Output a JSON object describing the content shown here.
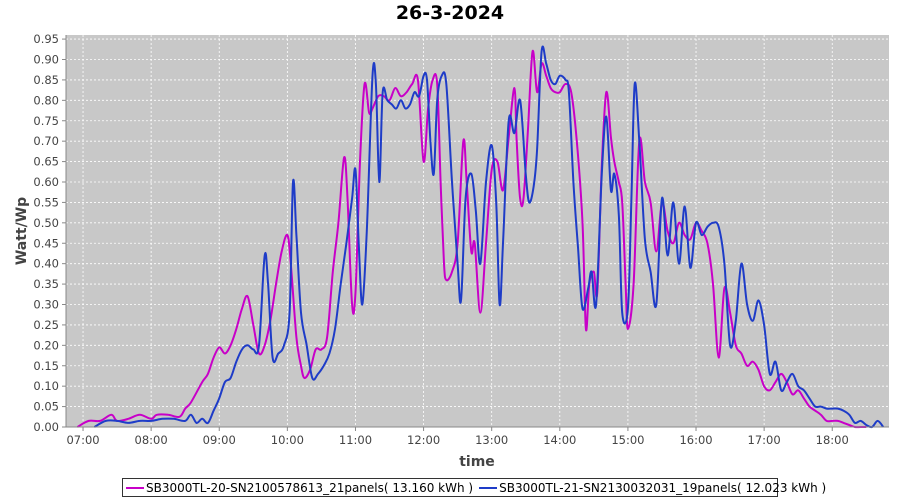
{
  "chart_data": {
    "type": "line",
    "title": "26-3-2024",
    "xlabel": "time",
    "ylabel": "Watt/Wp",
    "xlim": [
      "06:45",
      "18:50"
    ],
    "ylim": [
      0,
      0.96
    ],
    "x_ticks": [
      "07:00",
      "08:00",
      "09:00",
      "10:00",
      "11:00",
      "12:00",
      "13:00",
      "14:00",
      "15:00",
      "16:00",
      "17:00",
      "18:00"
    ],
    "y_ticks": [
      "0.00",
      "0.05",
      "0.10",
      "0.15",
      "0.20",
      "0.25",
      "0.30",
      "0.35",
      "0.40",
      "0.45",
      "0.50",
      "0.55",
      "0.60",
      "0.65",
      "0.70",
      "0.75",
      "0.80",
      "0.85",
      "0.90",
      "0.95"
    ],
    "grid": true,
    "legend_position": "bottom",
    "background_color": "#c8c8c8",
    "series": [
      {
        "name": "SB3000TL-20-SN2100578613_21panels( 13.160 kWh )",
        "color": "#c800c8",
        "points": [
          [
            "06:55",
            0.0
          ],
          [
            "07:05",
            0.015
          ],
          [
            "07:15",
            0.015
          ],
          [
            "07:25",
            0.03
          ],
          [
            "07:30",
            0.015
          ],
          [
            "07:40",
            0.02
          ],
          [
            "07:50",
            0.03
          ],
          [
            "08:00",
            0.02
          ],
          [
            "08:05",
            0.03
          ],
          [
            "08:15",
            0.03
          ],
          [
            "08:25",
            0.025
          ],
          [
            "08:30",
            0.045
          ],
          [
            "08:35",
            0.06
          ],
          [
            "08:45",
            0.11
          ],
          [
            "08:50",
            0.13
          ],
          [
            "08:55",
            0.17
          ],
          [
            "09:00",
            0.195
          ],
          [
            "09:05",
            0.18
          ],
          [
            "09:10",
            0.2
          ],
          [
            "09:15",
            0.24
          ],
          [
            "09:20",
            0.29
          ],
          [
            "09:25",
            0.32
          ],
          [
            "09:30",
            0.25
          ],
          [
            "09:35",
            0.18
          ],
          [
            "09:40",
            0.2
          ],
          [
            "09:45",
            0.26
          ],
          [
            "09:50",
            0.35
          ],
          [
            "09:55",
            0.43
          ],
          [
            "10:00",
            0.47
          ],
          [
            "10:03",
            0.4
          ],
          [
            "10:08",
            0.22
          ],
          [
            "10:12",
            0.15
          ],
          [
            "10:15",
            0.12
          ],
          [
            "10:20",
            0.14
          ],
          [
            "10:25",
            0.19
          ],
          [
            "10:30",
            0.19
          ],
          [
            "10:35",
            0.22
          ],
          [
            "10:40",
            0.38
          ],
          [
            "10:45",
            0.5
          ],
          [
            "10:50",
            0.66
          ],
          [
            "10:53",
            0.56
          ],
          [
            "10:57",
            0.3
          ],
          [
            "11:00",
            0.33
          ],
          [
            "11:04",
            0.65
          ],
          [
            "11:08",
            0.84
          ],
          [
            "11:12",
            0.77
          ],
          [
            "11:15",
            0.78
          ],
          [
            "11:20",
            0.81
          ],
          [
            "11:25",
            0.81
          ],
          [
            "11:30",
            0.8
          ],
          [
            "11:35",
            0.83
          ],
          [
            "11:40",
            0.81
          ],
          [
            "11:45",
            0.82
          ],
          [
            "11:50",
            0.84
          ],
          [
            "11:55",
            0.85
          ],
          [
            "12:00",
            0.65
          ],
          [
            "12:04",
            0.78
          ],
          [
            "12:08",
            0.85
          ],
          [
            "12:12",
            0.84
          ],
          [
            "12:15",
            0.6
          ],
          [
            "12:18",
            0.4
          ],
          [
            "12:20",
            0.36
          ],
          [
            "12:25",
            0.38
          ],
          [
            "12:30",
            0.45
          ],
          [
            "12:35",
            0.7
          ],
          [
            "12:38",
            0.6
          ],
          [
            "12:42",
            0.43
          ],
          [
            "12:45",
            0.45
          ],
          [
            "12:50",
            0.28
          ],
          [
            "12:55",
            0.45
          ],
          [
            "13:00",
            0.63
          ],
          [
            "13:05",
            0.65
          ],
          [
            "13:10",
            0.58
          ],
          [
            "13:15",
            0.71
          ],
          [
            "13:20",
            0.83
          ],
          [
            "13:22",
            0.7
          ],
          [
            "13:25",
            0.56
          ],
          [
            "13:28",
            0.56
          ],
          [
            "13:32",
            0.73
          ],
          [
            "13:36",
            0.92
          ],
          [
            "13:40",
            0.82
          ],
          [
            "13:44",
            0.89
          ],
          [
            "13:48",
            0.86
          ],
          [
            "13:52",
            0.83
          ],
          [
            "13:56",
            0.82
          ],
          [
            "14:00",
            0.82
          ],
          [
            "14:05",
            0.84
          ],
          [
            "14:10",
            0.82
          ],
          [
            "14:15",
            0.7
          ],
          [
            "14:20",
            0.5
          ],
          [
            "14:23",
            0.24
          ],
          [
            "14:26",
            0.35
          ],
          [
            "14:30",
            0.38
          ],
          [
            "14:33",
            0.33
          ],
          [
            "14:37",
            0.64
          ],
          [
            "14:41",
            0.82
          ],
          [
            "14:45",
            0.71
          ],
          [
            "14:48",
            0.65
          ],
          [
            "14:52",
            0.6
          ],
          [
            "14:55",
            0.55
          ],
          [
            "14:58",
            0.35
          ],
          [
            "15:00",
            0.24
          ],
          [
            "15:05",
            0.35
          ],
          [
            "15:10",
            0.7
          ],
          [
            "15:15",
            0.6
          ],
          [
            "15:20",
            0.55
          ],
          [
            "15:25",
            0.43
          ],
          [
            "15:30",
            0.55
          ],
          [
            "15:35",
            0.48
          ],
          [
            "15:40",
            0.45
          ],
          [
            "15:45",
            0.5
          ],
          [
            "15:50",
            0.47
          ],
          [
            "15:55",
            0.46
          ],
          [
            "16:00",
            0.5
          ],
          [
            "16:05",
            0.48
          ],
          [
            "16:10",
            0.45
          ],
          [
            "16:15",
            0.35
          ],
          [
            "16:20",
            0.17
          ],
          [
            "16:25",
            0.34
          ],
          [
            "16:30",
            0.28
          ],
          [
            "16:35",
            0.2
          ],
          [
            "16:40",
            0.18
          ],
          [
            "16:45",
            0.15
          ],
          [
            "16:50",
            0.16
          ],
          [
            "16:55",
            0.14
          ],
          [
            "17:00",
            0.1
          ],
          [
            "17:05",
            0.09
          ],
          [
            "17:10",
            0.11
          ],
          [
            "17:15",
            0.13
          ],
          [
            "17:20",
            0.11
          ],
          [
            "17:25",
            0.08
          ],
          [
            "17:30",
            0.09
          ],
          [
            "17:35",
            0.07
          ],
          [
            "17:40",
            0.05
          ],
          [
            "17:45",
            0.04
          ],
          [
            "17:50",
            0.03
          ],
          [
            "17:55",
            0.015
          ],
          [
            "18:00",
            0.015
          ],
          [
            "18:05",
            0.015
          ],
          [
            "18:10",
            0.01
          ],
          [
            "18:15",
            0.005
          ],
          [
            "18:20",
            0.0
          ],
          [
            "18:25",
            0.0
          ],
          [
            "18:30",
            0.0
          ]
        ]
      },
      {
        "name": "SB3000TL-21-SN2130032031_19panels( 12.023 kWh )",
        "color": "#1e3cc8",
        "points": [
          [
            "07:10",
            0.0
          ],
          [
            "07:20",
            0.015
          ],
          [
            "07:30",
            0.015
          ],
          [
            "07:40",
            0.01
          ],
          [
            "07:50",
            0.015
          ],
          [
            "08:00",
            0.015
          ],
          [
            "08:10",
            0.02
          ],
          [
            "08:20",
            0.02
          ],
          [
            "08:30",
            0.015
          ],
          [
            "08:35",
            0.03
          ],
          [
            "08:40",
            0.01
          ],
          [
            "08:45",
            0.02
          ],
          [
            "08:50",
            0.01
          ],
          [
            "08:55",
            0.04
          ],
          [
            "09:00",
            0.07
          ],
          [
            "09:05",
            0.11
          ],
          [
            "09:10",
            0.12
          ],
          [
            "09:15",
            0.16
          ],
          [
            "09:20",
            0.19
          ],
          [
            "09:25",
            0.2
          ],
          [
            "09:30",
            0.19
          ],
          [
            "09:35",
            0.2
          ],
          [
            "09:40",
            0.42
          ],
          [
            "09:43",
            0.35
          ],
          [
            "09:47",
            0.17
          ],
          [
            "09:52",
            0.18
          ],
          [
            "09:57",
            0.2
          ],
          [
            "10:02",
            0.28
          ],
          [
            "10:05",
            0.6
          ],
          [
            "10:08",
            0.47
          ],
          [
            "10:12",
            0.28
          ],
          [
            "10:17",
            0.2
          ],
          [
            "10:22",
            0.12
          ],
          [
            "10:27",
            0.13
          ],
          [
            "10:32",
            0.15
          ],
          [
            "10:37",
            0.18
          ],
          [
            "10:42",
            0.24
          ],
          [
            "10:47",
            0.35
          ],
          [
            "10:52",
            0.45
          ],
          [
            "10:57",
            0.56
          ],
          [
            "11:00",
            0.63
          ],
          [
            "11:03",
            0.44
          ],
          [
            "11:06",
            0.3
          ],
          [
            "11:10",
            0.48
          ],
          [
            "11:15",
            0.86
          ],
          [
            "11:18",
            0.84
          ],
          [
            "11:21",
            0.6
          ],
          [
            "11:24",
            0.82
          ],
          [
            "11:28",
            0.8
          ],
          [
            "11:32",
            0.79
          ],
          [
            "11:36",
            0.78
          ],
          [
            "11:40",
            0.8
          ],
          [
            "11:44",
            0.78
          ],
          [
            "11:48",
            0.79
          ],
          [
            "11:52",
            0.82
          ],
          [
            "11:56",
            0.81
          ],
          [
            "12:00",
            0.86
          ],
          [
            "12:03",
            0.85
          ],
          [
            "12:06",
            0.7
          ],
          [
            "12:09",
            0.62
          ],
          [
            "12:12",
            0.8
          ],
          [
            "12:16",
            0.86
          ],
          [
            "12:20",
            0.84
          ],
          [
            "12:25",
            0.6
          ],
          [
            "12:30",
            0.4
          ],
          [
            "12:33",
            0.31
          ],
          [
            "12:37",
            0.56
          ],
          [
            "12:42",
            0.62
          ],
          [
            "12:46",
            0.53
          ],
          [
            "12:50",
            0.4
          ],
          [
            "12:55",
            0.6
          ],
          [
            "13:00",
            0.69
          ],
          [
            "13:04",
            0.55
          ],
          [
            "13:07",
            0.3
          ],
          [
            "13:10",
            0.45
          ],
          [
            "13:15",
            0.75
          ],
          [
            "13:20",
            0.72
          ],
          [
            "13:25",
            0.8
          ],
          [
            "13:30",
            0.62
          ],
          [
            "13:33",
            0.55
          ],
          [
            "13:37",
            0.59
          ],
          [
            "13:40",
            0.68
          ],
          [
            "13:44",
            0.92
          ],
          [
            "13:48",
            0.89
          ],
          [
            "13:52",
            0.85
          ],
          [
            "13:56",
            0.84
          ],
          [
            "14:00",
            0.86
          ],
          [
            "14:05",
            0.85
          ],
          [
            "14:08",
            0.82
          ],
          [
            "14:12",
            0.6
          ],
          [
            "14:16",
            0.44
          ],
          [
            "14:20",
            0.29
          ],
          [
            "14:25",
            0.34
          ],
          [
            "14:28",
            0.38
          ],
          [
            "14:32",
            0.3
          ],
          [
            "14:37",
            0.62
          ],
          [
            "14:41",
            0.76
          ],
          [
            "14:45",
            0.58
          ],
          [
            "14:48",
            0.62
          ],
          [
            "14:52",
            0.52
          ],
          [
            "14:55",
            0.28
          ],
          [
            "15:00",
            0.29
          ],
          [
            "15:03",
            0.55
          ],
          [
            "15:06",
            0.84
          ],
          [
            "15:10",
            0.7
          ],
          [
            "15:15",
            0.46
          ],
          [
            "15:20",
            0.38
          ],
          [
            "15:25",
            0.3
          ],
          [
            "15:30",
            0.56
          ],
          [
            "15:35",
            0.42
          ],
          [
            "15:40",
            0.55
          ],
          [
            "15:45",
            0.4
          ],
          [
            "15:50",
            0.54
          ],
          [
            "15:55",
            0.39
          ],
          [
            "16:00",
            0.5
          ],
          [
            "16:05",
            0.47
          ],
          [
            "16:10",
            0.49
          ],
          [
            "16:15",
            0.5
          ],
          [
            "16:20",
            0.49
          ],
          [
            "16:25",
            0.4
          ],
          [
            "16:30",
            0.2
          ],
          [
            "16:35",
            0.26
          ],
          [
            "16:40",
            0.4
          ],
          [
            "16:45",
            0.3
          ],
          [
            "16:50",
            0.26
          ],
          [
            "16:55",
            0.31
          ],
          [
            "17:00",
            0.25
          ],
          [
            "17:05",
            0.13
          ],
          [
            "17:10",
            0.16
          ],
          [
            "17:15",
            0.09
          ],
          [
            "17:20",
            0.11
          ],
          [
            "17:25",
            0.13
          ],
          [
            "17:30",
            0.1
          ],
          [
            "17:35",
            0.09
          ],
          [
            "17:40",
            0.07
          ],
          [
            "17:45",
            0.05
          ],
          [
            "17:50",
            0.05
          ],
          [
            "17:55",
            0.045
          ],
          [
            "18:00",
            0.045
          ],
          [
            "18:05",
            0.045
          ],
          [
            "18:10",
            0.04
          ],
          [
            "18:15",
            0.03
          ],
          [
            "18:20",
            0.01
          ],
          [
            "18:25",
            0.015
          ],
          [
            "18:30",
            0.005
          ],
          [
            "18:35",
            0.0
          ],
          [
            "18:40",
            0.015
          ],
          [
            "18:45",
            0.0
          ]
        ]
      }
    ]
  }
}
